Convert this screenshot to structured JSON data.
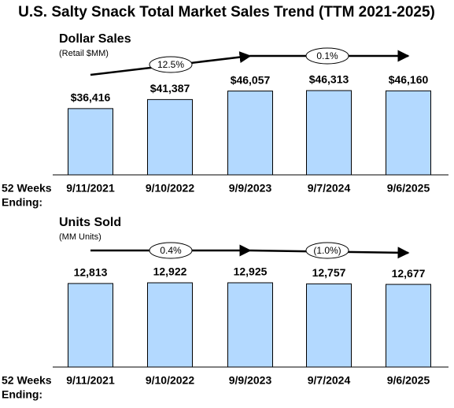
{
  "title": "U.S. Salty Snack Total Market Sales Trend (TTM 2021-2025)",
  "chart_data": [
    {
      "type": "bar",
      "title": "Dollar Sales",
      "subtitle": "(Retail $MM)",
      "x_label": [
        "52 Weeks",
        "Ending:"
      ],
      "categories": [
        "9/11/2021",
        "9/10/2022",
        "9/9/2023",
        "9/7/2024",
        "9/6/2025"
      ],
      "values": [
        36416,
        41387,
        46057,
        46313,
        46160
      ],
      "value_labels": [
        "$36,416",
        "$41,387",
        "$46,057",
        "$46,313",
        "$46,160"
      ],
      "color": "#b3d9ff",
      "annotations": [
        "12.5%",
        "0.1%"
      ]
    },
    {
      "type": "bar",
      "title": "Units Sold",
      "subtitle": "(MM Units)",
      "x_label": [
        "52 Weeks",
        "Ending:"
      ],
      "categories": [
        "9/11/2021",
        "9/10/2022",
        "9/9/2023",
        "9/7/2024",
        "9/6/2025"
      ],
      "values": [
        12813,
        12922,
        12925,
        12757,
        12677
      ],
      "value_labels": [
        "12,813",
        "12,922",
        "12,925",
        "12,757",
        "12,677"
      ],
      "color": "#b3d9ff",
      "annotations": [
        "0.4%",
        "(1.0%)"
      ]
    }
  ]
}
